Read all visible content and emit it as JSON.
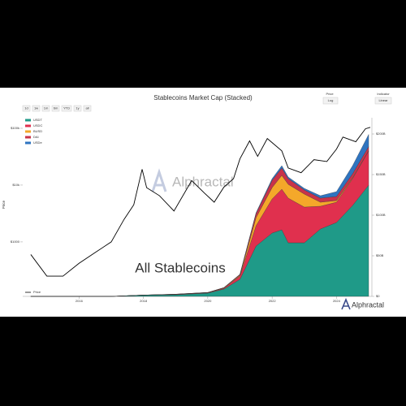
{
  "chart_data": {
    "type": "area",
    "title": "Stablecoins Market Cap (Stacked)",
    "ranges": [
      "1d",
      "1w",
      "1m",
      "6m",
      "YTD",
      "1y",
      "all"
    ],
    "price_selector": {
      "label": "Price",
      "value": "Log"
    },
    "indicator_selector": {
      "label": "Indicator",
      "value": "Linear"
    },
    "ylabel": "Price",
    "annotation": "All Stablecoins",
    "watermark": "Alphractal",
    "brand": "Alphractal",
    "x": [
      2014.5,
      2016,
      2017,
      2018,
      2019,
      2020,
      2020.5,
      2021,
      2021.5,
      2022,
      2022.3,
      2022.5,
      2023,
      2023.5,
      2024,
      2024.5,
      2025
    ],
    "xlim": [
      2014.25,
      2025.1
    ],
    "xticks": [
      2016,
      2018,
      2020,
      2022,
      2024
    ],
    "series": [
      {
        "name": "USDT",
        "color": "#1f9a88",
        "values": [
          0,
          0,
          0,
          1.5,
          2,
          4,
          9,
          21,
          62,
          78,
          82,
          66,
          66,
          83,
          91,
          112,
          137
        ]
      },
      {
        "name": "USDC",
        "color": "#e0304e",
        "values": [
          0,
          0,
          0,
          0.1,
          0.5,
          0.5,
          1,
          4,
          25,
          42,
          50,
          55,
          44,
          28,
          25,
          33,
          42
        ]
      },
      {
        "name": "BUSD",
        "color": "#f4a82a",
        "values": [
          0,
          0,
          0,
          0,
          0.1,
          0.2,
          0.5,
          1,
          10,
          14,
          17,
          17,
          16,
          5,
          2,
          1,
          0.5
        ]
      },
      {
        "name": "DAI",
        "color": "#c9334a",
        "values": [
          0,
          0,
          0,
          0,
          0.1,
          0.1,
          0.2,
          1,
          5,
          9,
          9,
          7,
          5,
          5,
          5,
          5,
          5
        ]
      },
      {
        "name": "USDe",
        "color": "#2f74c0",
        "values": [
          0,
          0,
          0,
          0,
          0,
          0,
          0.1,
          0.3,
          1,
          2,
          3,
          2,
          2,
          3,
          6,
          10,
          15
        ]
      }
    ],
    "y2lim": [
      0,
      215
    ],
    "y2ticks": [
      {
        "value": 0,
        "label": "$0"
      },
      {
        "value": 50,
        "label": "$50B"
      },
      {
        "value": 100,
        "label": "$100B"
      },
      {
        "value": 150,
        "label": "$150B"
      },
      {
        "value": 200,
        "label": "$200B"
      }
    ],
    "price": {
      "name": "Price",
      "color": "#000000",
      "x": [
        2014.5,
        2015,
        2015.5,
        2016,
        2016.5,
        2017,
        2017.4,
        2017.7,
        2017.96,
        2018.1,
        2018.5,
        2018.95,
        2019.5,
        2019.9,
        2020.2,
        2020.5,
        2020.8,
        2021,
        2021.3,
        2021.55,
        2021.85,
        2022.3,
        2022.5,
        2022.9,
        2023.3,
        2023.7,
        2024,
        2024.2,
        2024.6,
        2024.9,
        2025.05
      ],
      "values": [
        600,
        250,
        250,
        420,
        650,
        1000,
        2500,
        4500,
        19000,
        9000,
        6500,
        3500,
        12000,
        7200,
        5000,
        9200,
        13000,
        29000,
        60000,
        32000,
        66000,
        40000,
        20000,
        16500,
        28000,
        26000,
        43000,
        70000,
        58000,
        98000,
        104000
      ]
    },
    "ylim": [
      110,
      130000
    ],
    "log_scale": true,
    "yticks": [
      {
        "value": 1000,
        "label": "$1000"
      },
      {
        "value": 10000,
        "label": "$10k"
      },
      {
        "value": 100000,
        "label": "$100k"
      }
    ]
  }
}
